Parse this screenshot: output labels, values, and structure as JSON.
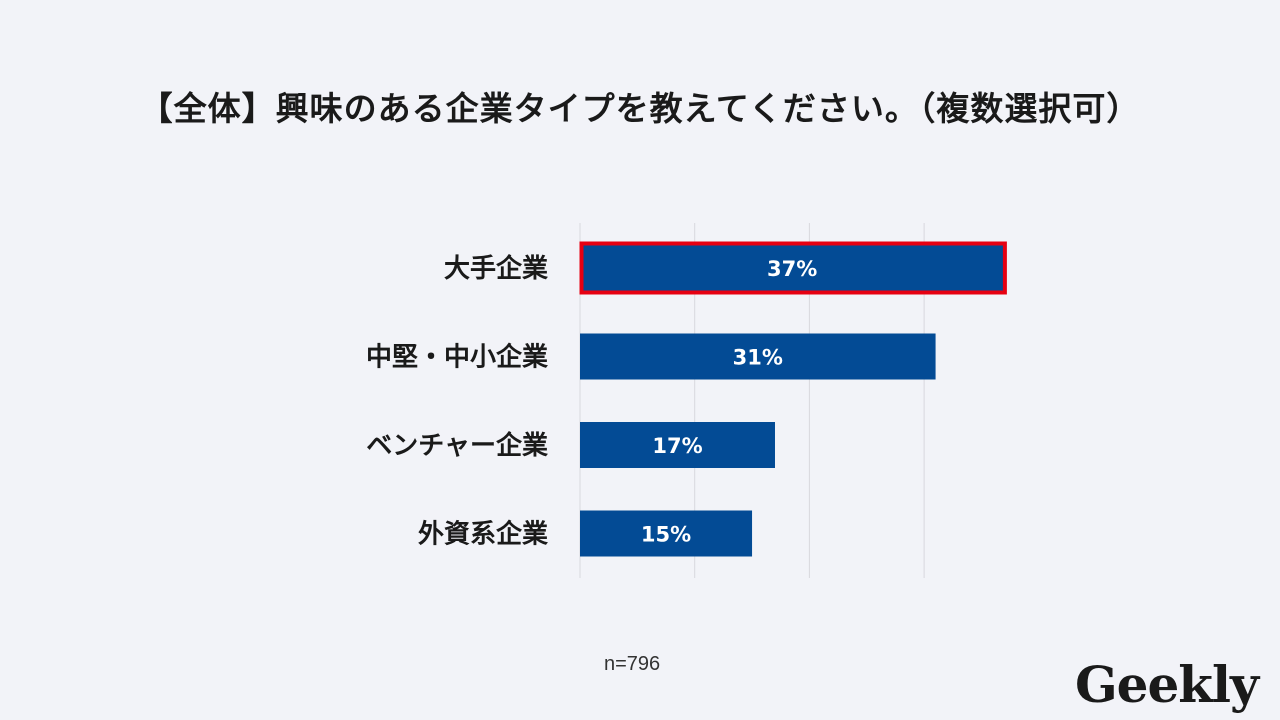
{
  "page_title": "【全体】興味のある企業タイプを教えてください。（複数選択可）",
  "sample_note": "n=796",
  "logo_text": "Geekly",
  "colors": {
    "bar": "#034b95",
    "highlight": "#e60012",
    "grid": "#d8d8de"
  },
  "chart_data": {
    "type": "bar",
    "orientation": "horizontal",
    "title": "【全体】興味のある企業タイプを教えてください。（複数選択可）",
    "categories": [
      "大手企業",
      "中堅・中小企業",
      "ベンチャー企業",
      "外資系企業"
    ],
    "values": [
      37,
      31,
      17,
      15
    ],
    "value_labels": [
      "37%",
      "31%",
      "17%",
      "15%"
    ],
    "highlighted_category": "大手企業",
    "xlim": [
      0,
      50
    ],
    "grid": true,
    "legend": "none"
  }
}
